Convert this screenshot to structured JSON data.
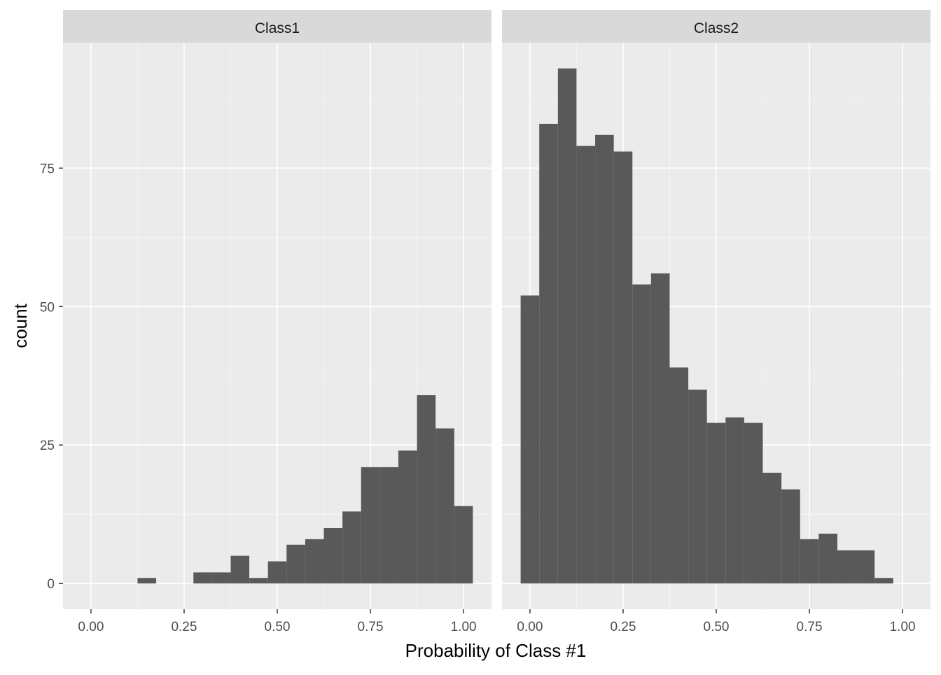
{
  "chart_data": {
    "type": "bar",
    "layout": "faceted-histogram",
    "xlabel": "Probability of Class #1",
    "ylabel": "count",
    "xlim": [
      -0.075,
      1.075
    ],
    "ylim": [
      -4.65,
      97.65
    ],
    "x_ticks": [
      0.0,
      0.25,
      0.5,
      0.75,
      1.0
    ],
    "x_tick_labels": [
      "0.00",
      "0.25",
      "0.50",
      "0.75",
      "1.00"
    ],
    "y_ticks": [
      0,
      25,
      50,
      75
    ],
    "y_tick_labels": [
      "0",
      "25",
      "50",
      "75"
    ],
    "bin_width": 0.05,
    "grid": true,
    "legend": "none",
    "colors": {
      "bar": "#595959",
      "panel_background": "#ebebeb",
      "grid_major": "#ffffff",
      "strip_background": "#d9d9d9"
    },
    "bin_centers": [
      0.0,
      0.05,
      0.1,
      0.15,
      0.2,
      0.25,
      0.3,
      0.35,
      0.4,
      0.45,
      0.5,
      0.55,
      0.6,
      0.65,
      0.7,
      0.75,
      0.8,
      0.85,
      0.9,
      0.95,
      1.0
    ],
    "facets": [
      {
        "name": "Class1",
        "values": [
          0,
          0,
          0,
          1,
          0,
          0,
          2,
          2,
          5,
          1,
          4,
          7,
          8,
          10,
          13,
          21,
          21,
          24,
          34,
          28,
          14
        ]
      },
      {
        "name": "Class2",
        "values": [
          52,
          83,
          93,
          79,
          81,
          78,
          54,
          56,
          39,
          35,
          29,
          30,
          29,
          20,
          17,
          8,
          9,
          6,
          6,
          1,
          0
        ]
      }
    ]
  }
}
